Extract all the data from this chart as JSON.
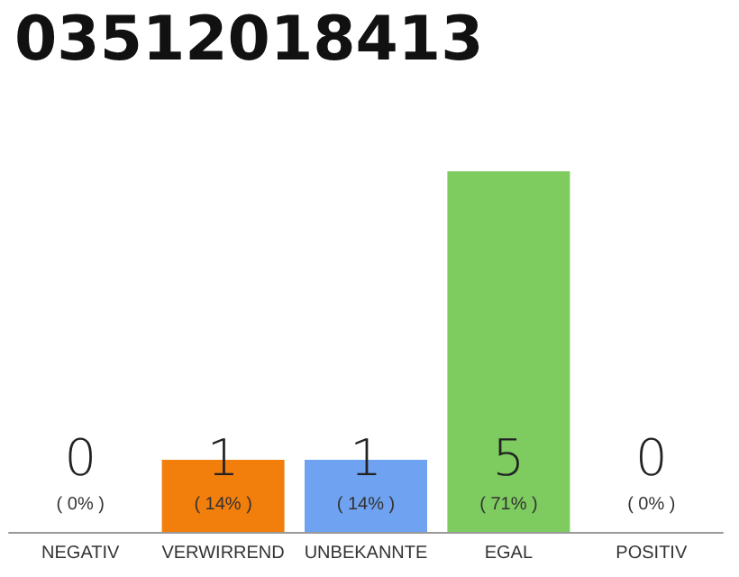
{
  "chart_data": {
    "type": "bar",
    "title": "03512018413",
    "categories": [
      "NEGATIV",
      "VERWIRREND",
      "UNBEKANNTE",
      "EGAL",
      "POSITIV"
    ],
    "values": [
      0,
      1,
      1,
      5,
      0
    ],
    "colors": [
      "#cccccc",
      "#f27e0c",
      "#6fa2f0",
      "#7ecb5f",
      "#cccccc"
    ],
    "value_labels": [
      "0\n( 0% )",
      "1\n( 14% )",
      "1\n( 14% )",
      "5\n( 71% )",
      "0\n( 0% )"
    ],
    "ylim": [
      0,
      5
    ]
  }
}
